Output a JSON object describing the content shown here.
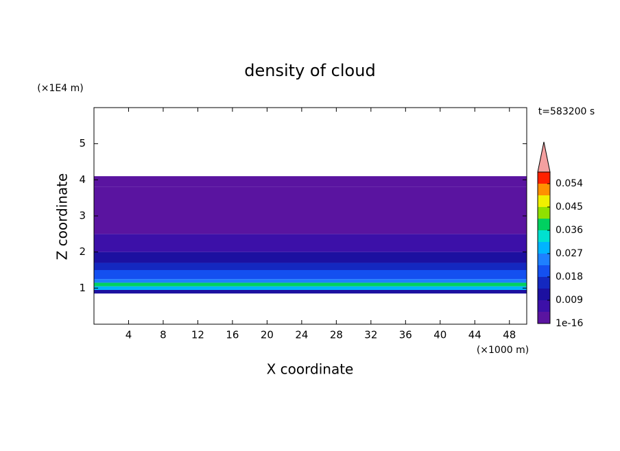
{
  "chart_data": {
    "type": "contour",
    "title": "density of cloud",
    "x_label": "X coordinate",
    "y_label": "Z coordinate",
    "x_unit": "(×1000 m)",
    "y_unit": "(×1E4 m)",
    "time_label": "t=583200 s",
    "xlim": [
      0,
      50
    ],
    "xticks": [
      4,
      8,
      12,
      16,
      20,
      24,
      28,
      32,
      36,
      40,
      44,
      48
    ],
    "ylim": [
      0,
      6
    ],
    "yticks": [
      1,
      2,
      3,
      4,
      5
    ],
    "z_edges": [
      0.85,
      0.95,
      1.05,
      1.15,
      1.25,
      1.5,
      1.7,
      2.0,
      2.5,
      3.0,
      3.8,
      4.1
    ],
    "values": [
      0.009,
      0.03,
      0.04,
      0.025,
      0.018,
      0.015,
      0.012,
      0.007,
      0.004,
      0.002,
      0.0005
    ],
    "levels": [
      1e-16,
      0.0045,
      0.009,
      0.0135,
      0.018,
      0.0225,
      0.027,
      0.0315,
      0.036,
      0.0405,
      0.045,
      0.0495,
      0.054,
      0.0585
    ],
    "colors": [
      "#5a14a0",
      "#3c10a8",
      "#1c10a0",
      "#1428c0",
      "#1450f0",
      "#1e80ff",
      "#00b4ff",
      "#00e0d0",
      "#00d060",
      "#90e000",
      "#f0f000",
      "#ff9000",
      "#ff2000"
    ],
    "extend_color": "#f4a0a0",
    "colorbar_ticks": [
      1e-16,
      0.009,
      0.018,
      0.027,
      0.036,
      0.045,
      0.054
    ]
  }
}
